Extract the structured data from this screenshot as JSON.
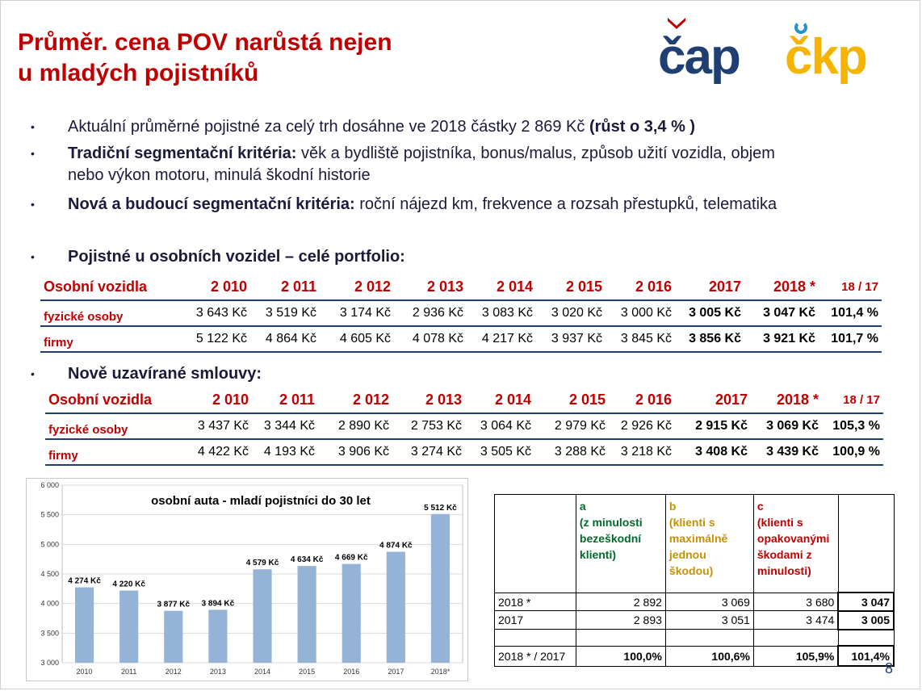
{
  "title": {
    "line1": "Průměr. cena POV narůstá nejen",
    "line2": "u mladých pojistníků"
  },
  "logos": {
    "left": "čap",
    "right": "čkp"
  },
  "bullets": [
    {
      "lead": "",
      "text": "Aktuální průměrné pojistné za celý trh dosáhne ve 2018 částky 2 869 Kč ",
      "tail": "(růst o 3,4 % )"
    },
    {
      "lead": "Tradiční segmentační kritéria:",
      "text": " věk a bydliště pojistníka, bonus/malus, způsob užití vozidla, objem nebo výkon motoru, minulá škodní historie",
      "tail": ""
    },
    {
      "lead": "Nová a budoucí segmentační kritéria:",
      "text": " roční nájezd km, frekvence a rozsah přestupků, telematika",
      "tail": ""
    },
    {
      "lead": "Pojistné u osobních vozidel – celé portfolio:",
      "text": "",
      "tail": ""
    },
    {
      "lead": "Nově uzavírané smlouvy:",
      "text": "",
      "tail": ""
    }
  ],
  "bullet_symbol": "•",
  "table1": {
    "header": [
      "Osobní vozidla",
      "2 010",
      "2 011",
      "2 012",
      "2 013",
      "2 014",
      "2 015",
      "2 016",
      "2017",
      "2018 *",
      "18 / 17"
    ],
    "rows": [
      {
        "label": "fyzické osoby",
        "values": [
          "3 643 Kč",
          "3 519 Kč",
          "3 174 Kč",
          "2 936 Kč",
          "3 083 Kč",
          "3 020 Kč",
          "3 000 Kč",
          "3 005 Kč",
          "3 047 Kč",
          "101,4 %"
        ]
      },
      {
        "label": "firmy",
        "values": [
          "5 122 Kč",
          "4 864 Kč",
          "4 605 Kč",
          "4 078 Kč",
          "4 217 Kč",
          "3 937 Kč",
          "3 845 Kč",
          "3 856 Kč",
          "3 921 Kč",
          "101,7 %"
        ]
      }
    ]
  },
  "table2": {
    "header": [
      "Osobní vozidla",
      "2 010",
      "2 011",
      "2 012",
      "2 013",
      "2 014",
      "2 015",
      "2 016",
      "2017",
      "2018 *",
      "18 / 17"
    ],
    "rows": [
      {
        "label": "fyzické osoby",
        "values": [
          "3 437 Kč",
          "3 344 Kč",
          "2 890 Kč",
          "2 753 Kč",
          "3 064 Kč",
          "2 979 Kč",
          "2 926 Kč",
          "2 915 Kč",
          "3 069 Kč",
          "105,3 %"
        ]
      },
      {
        "label": "firmy",
        "values": [
          "4 422 Kč",
          "4 193 Kč",
          "3 906 Kč",
          "3 274 Kč",
          "3 505 Kč",
          "3 288 Kč",
          "3 218 Kč",
          "3 408 Kč",
          "3 439 Kč",
          "100,9 %"
        ]
      }
    ]
  },
  "chart_data": {
    "type": "bar",
    "title": "osobní auta - mladí pojistníci do 30 let",
    "categories": [
      "2010",
      "2011",
      "2012",
      "2013",
      "2014",
      "2015",
      "2016",
      "2017",
      "2018*"
    ],
    "values": [
      4274,
      4220,
      3877,
      3894,
      4579,
      4634,
      4669,
      4874,
      5512
    ],
    "data_labels": [
      "4 274 Kč",
      "4 220 Kč",
      "3 877 Kč",
      "3 894 Kč",
      "4 579 Kč",
      "4 634 Kč",
      "4 669 Kč",
      "4 874 Kč",
      "5 512 Kč"
    ],
    "y_ticks": [
      "3 000",
      "3 500",
      "4 000",
      "4 500",
      "5 000",
      "5 500",
      "6 000"
    ],
    "ylim": [
      3000,
      6000
    ],
    "grid": true,
    "bar_color": "#95b3d7"
  },
  "table3": {
    "headers": [
      {
        "letter": "",
        "lines": []
      },
      {
        "letter": "a",
        "lines": [
          "(z minulosti",
          "bezeškodní",
          "klienti)"
        ]
      },
      {
        "letter": "b",
        "lines": [
          "(klienti s",
          "maximálně",
          "jednou",
          "škodou)"
        ]
      },
      {
        "letter": "c",
        "lines": [
          "(klienti s",
          "opakovanými",
          "škodami z",
          "minulosti)"
        ]
      },
      {
        "letter": "",
        "lines": []
      }
    ],
    "rows": [
      {
        "label": "2018 *",
        "a": "2 892",
        "b": "3 069",
        "c": "3 680",
        "total": "3 047"
      },
      {
        "label": "2017",
        "a": "2 893",
        "b": "3 051",
        "c": "3 474",
        "total": "3 005"
      },
      {
        "label": "",
        "a": "",
        "b": "",
        "c": "",
        "total": ""
      },
      {
        "label": "2018 * / 2017",
        "a": "100,0%",
        "b": "100,6%",
        "c": "105,9%",
        "total": "101,4%"
      }
    ]
  },
  "page_number": "8",
  "colors": {
    "title": "#c00000",
    "navy": "#1f3f73",
    "gold": "#f5b400",
    "green": "#006a2b"
  }
}
